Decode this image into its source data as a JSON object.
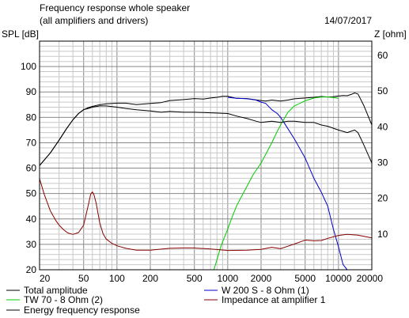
{
  "header": {
    "title_line1": "Frequency response whole speaker",
    "title_line2": "(all amplifiers and drivers)",
    "date": "14/07/2017"
  },
  "chart_data": {
    "type": "line",
    "title": "Frequency response whole speaker",
    "subtitle": "(all amplifiers and drivers)",
    "xlabel": "",
    "x_scale": "log",
    "xlim": [
      20,
      20000
    ],
    "x_ticks": [
      20,
      50,
      100,
      200,
      500,
      1000,
      2000,
      5000,
      10000,
      20000
    ],
    "x_tick_labels": [
      "20",
      "50",
      "100",
      "200",
      "500",
      "1000",
      "2000",
      "5000",
      "10000",
      "20000"
    ],
    "y_left": {
      "label": "SPL [dB]",
      "lim": [
        20,
        110
      ],
      "ticks": [
        20,
        30,
        40,
        50,
        60,
        70,
        80,
        90,
        100
      ]
    },
    "y_right": {
      "label": "Z [ohm]",
      "lim": [
        0,
        64
      ],
      "ticks": [
        10,
        20,
        30,
        40,
        50,
        60
      ]
    },
    "grid": true,
    "legend_position": "bottom",
    "series": [
      {
        "name": "Total amplitude",
        "color": "#000000",
        "axis": "left",
        "x": [
          20,
          25,
          30,
          35,
          40,
          45,
          50,
          55,
          60,
          70,
          80,
          100,
          120,
          150,
          200,
          250,
          300,
          400,
          500,
          600,
          700,
          800,
          900,
          1000,
          1200,
          1500,
          1800,
          2000,
          2200,
          2500,
          3000,
          3500,
          4000,
          5000,
          6000,
          7000,
          8000,
          9000,
          10000,
          11000,
          12000,
          13000,
          14000,
          15000,
          17000,
          20000
        ],
        "y": [
          61,
          66,
          71,
          75.5,
          79,
          81.5,
          83,
          83.8,
          84.3,
          85,
          85.3,
          85.6,
          85.6,
          85,
          85.5,
          85.8,
          86.6,
          87,
          87.4,
          87.2,
          87.6,
          87.9,
          88.3,
          88.3,
          87.5,
          87.4,
          86.9,
          86.6,
          86.4,
          86.8,
          86.4,
          86.8,
          87.3,
          87.6,
          87.9,
          88.2,
          88,
          88.1,
          88.4,
          88.6,
          88.5,
          89,
          89.6,
          89.2,
          84.5,
          77
        ]
      },
      {
        "name": "W 200 S - 8 Ohm (1)",
        "color": "#0000cc",
        "axis": "left",
        "x": [
          1000,
          1200,
          1500,
          1800,
          2000,
          2200,
          2500,
          2800,
          3000,
          3500,
          4000,
          5000,
          6000,
          7000,
          8000,
          9000,
          10000,
          11000,
          12000,
          15000,
          20000
        ],
        "y": [
          87.9,
          87.5,
          87.3,
          86.8,
          86,
          85.5,
          83,
          81.5,
          80,
          75.5,
          71.5,
          64,
          56,
          50.5,
          45,
          36,
          29,
          22,
          20,
          20,
          20
        ]
      },
      {
        "name": "TW 70 - 8 Ohm (2)",
        "color": "#00cc00",
        "axis": "left",
        "x": [
          750,
          800,
          850,
          900,
          1000,
          1100,
          1200,
          1300,
          1500,
          1700,
          2000,
          2300,
          2500,
          2800,
          3000,
          3500,
          4000,
          5000,
          6000,
          7000,
          8000,
          9000,
          10000
        ],
        "y": [
          20,
          24,
          28,
          31,
          36,
          41,
          45,
          48,
          53,
          57.5,
          62,
          67,
          70,
          74.5,
          77,
          82,
          84.5,
          86.5,
          87.6,
          88,
          88,
          87.8,
          87.5
        ]
      },
      {
        "name": "Impedance at amplifier 1",
        "color": "#880000",
        "axis": "right",
        "x": [
          20,
          22,
          25,
          28,
          30,
          33,
          36,
          40,
          45,
          50,
          55,
          58,
          60,
          62,
          65,
          70,
          75,
          80,
          90,
          100,
          120,
          150,
          200,
          300,
          400,
          500,
          700,
          1000,
          1500,
          2000,
          2500,
          3000,
          3500,
          4000,
          5000,
          6000,
          7000,
          8000,
          10000,
          12000,
          15000,
          20000
        ],
        "y": [
          25.5,
          21.2,
          16.5,
          13.8,
          12.5,
          11.2,
          10.3,
          9.9,
          10.4,
          12.5,
          18,
          21.2,
          21.8,
          21,
          18.5,
          13,
          10,
          8.6,
          7.4,
          6.7,
          6,
          5.5,
          5.5,
          6,
          6.1,
          6.1,
          5.8,
          5.4,
          5.5,
          5.7,
          6.3,
          5.9,
          6.6,
          7.2,
          8.3,
          8.1,
          8.2,
          8.8,
          9.6,
          9.9,
          9.7,
          8.9
        ]
      },
      {
        "name": "Energy frequency response",
        "color": "#000000",
        "axis": "left",
        "x": [
          20,
          25,
          30,
          35,
          40,
          45,
          50,
          55,
          60,
          70,
          80,
          100,
          120,
          150,
          200,
          250,
          300,
          400,
          500,
          700,
          1000,
          1200,
          1500,
          1800,
          2000,
          2500,
          3000,
          3500,
          4000,
          5000,
          6000,
          7000,
          8000,
          10000,
          12000,
          14000,
          15000,
          17000,
          20000
        ],
        "y": [
          61,
          66,
          71,
          75.5,
          79,
          81.5,
          83,
          83.5,
          84,
          84.5,
          84.5,
          84,
          83.5,
          83,
          82.5,
          82,
          82.3,
          82,
          82,
          81.8,
          81.5,
          80.5,
          79.5,
          78.5,
          78,
          78.5,
          78,
          78.5,
          78.5,
          78,
          78,
          77,
          76.5,
          75,
          74,
          75,
          74,
          69,
          62
        ]
      }
    ]
  },
  "legend": {
    "items": [
      {
        "label": "Total amplitude",
        "color": "#000000"
      },
      {
        "label": "W 200 S - 8 Ohm (1)",
        "color": "#0000cc"
      },
      {
        "label": "TW 70 - 8 Ohm (2)",
        "color": "#00cc00"
      },
      {
        "label": "Impedance at amplifier 1",
        "color": "#880000"
      },
      {
        "label": "Energy frequency response",
        "color": "#000000"
      }
    ]
  }
}
